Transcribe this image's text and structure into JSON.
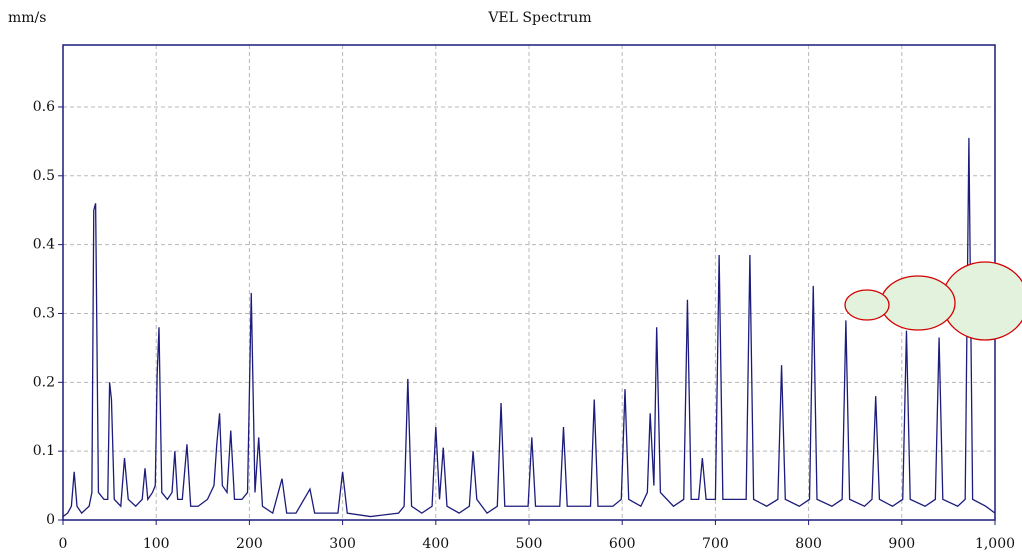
{
  "chart_data": {
    "type": "line",
    "title": "VEL Spectrum",
    "y_unit": "mm/s",
    "x": [
      0,
      5,
      9,
      12,
      15,
      20,
      28,
      31,
      33,
      35,
      38,
      44,
      48,
      50,
      52,
      55,
      62,
      66,
      70,
      78,
      85,
      88,
      91,
      96,
      99,
      101,
      103,
      106,
      112,
      117,
      120,
      123,
      128,
      133,
      137,
      145,
      155,
      162,
      165,
      168,
      171,
      176,
      180,
      184,
      192,
      198,
      202,
      206,
      210,
      214,
      225,
      235,
      240,
      250,
      265,
      270,
      285,
      295,
      300,
      305,
      330,
      360,
      366,
      370,
      374,
      385,
      396,
      400,
      404,
      408,
      412,
      425,
      436,
      440,
      444,
      455,
      466,
      470,
      474,
      490,
      499,
      503,
      507,
      520,
      533,
      537,
      541,
      555,
      566,
      570,
      574,
      590,
      599,
      603,
      607,
      620,
      627,
      630,
      634,
      637,
      641,
      655,
      666,
      670,
      674,
      682,
      686,
      690,
      700,
      704,
      708,
      720,
      733,
      737,
      741,
      755,
      767,
      771,
      775,
      790,
      801,
      805,
      809,
      825,
      836,
      840,
      844,
      860,
      868,
      872,
      876,
      890,
      901,
      905,
      909,
      925,
      936,
      940,
      944,
      960,
      968,
      972,
      976,
      990,
      1000
    ],
    "values": [
      0.005,
      0.01,
      0.02,
      0.07,
      0.02,
      0.01,
      0.02,
      0.04,
      0.45,
      0.46,
      0.04,
      0.03,
      0.03,
      0.2,
      0.175,
      0.03,
      0.02,
      0.09,
      0.03,
      0.02,
      0.03,
      0.075,
      0.03,
      0.04,
      0.05,
      0.21,
      0.28,
      0.04,
      0.03,
      0.04,
      0.1,
      0.03,
      0.03,
      0.11,
      0.02,
      0.02,
      0.03,
      0.05,
      0.11,
      0.155,
      0.05,
      0.04,
      0.13,
      0.03,
      0.03,
      0.04,
      0.33,
      0.04,
      0.12,
      0.02,
      0.01,
      0.06,
      0.01,
      0.01,
      0.045,
      0.01,
      0.01,
      0.01,
      0.07,
      0.01,
      0.005,
      0.01,
      0.02,
      0.205,
      0.02,
      0.01,
      0.02,
      0.135,
      0.03,
      0.105,
      0.02,
      0.01,
      0.02,
      0.1,
      0.03,
      0.01,
      0.02,
      0.17,
      0.02,
      0.02,
      0.02,
      0.12,
      0.02,
      0.02,
      0.02,
      0.135,
      0.02,
      0.02,
      0.02,
      0.175,
      0.02,
      0.02,
      0.03,
      0.19,
      0.03,
      0.02,
      0.04,
      0.155,
      0.05,
      0.28,
      0.04,
      0.02,
      0.03,
      0.32,
      0.03,
      0.03,
      0.09,
      0.03,
      0.03,
      0.385,
      0.03,
      0.03,
      0.03,
      0.385,
      0.03,
      0.02,
      0.03,
      0.225,
      0.03,
      0.02,
      0.03,
      0.34,
      0.03,
      0.02,
      0.03,
      0.29,
      0.03,
      0.02,
      0.03,
      0.18,
      0.03,
      0.02,
      0.03,
      0.275,
      0.03,
      0.02,
      0.03,
      0.265,
      0.03,
      0.02,
      0.03,
      0.555,
      0.03,
      0.02,
      0.01
    ],
    "color": "#1c1c7c",
    "xlim": [
      0,
      1000
    ],
    "ylim": [
      0,
      0.69
    ],
    "xticks": [
      0,
      100,
      200,
      300,
      400,
      500,
      600,
      700,
      800,
      900,
      {
        "value": 1000,
        "label": "1,000"
      }
    ],
    "yticks": [
      0,
      0.1,
      0.2,
      0.3,
      0.4,
      0.5,
      0.6
    ],
    "grid": true
  }
}
